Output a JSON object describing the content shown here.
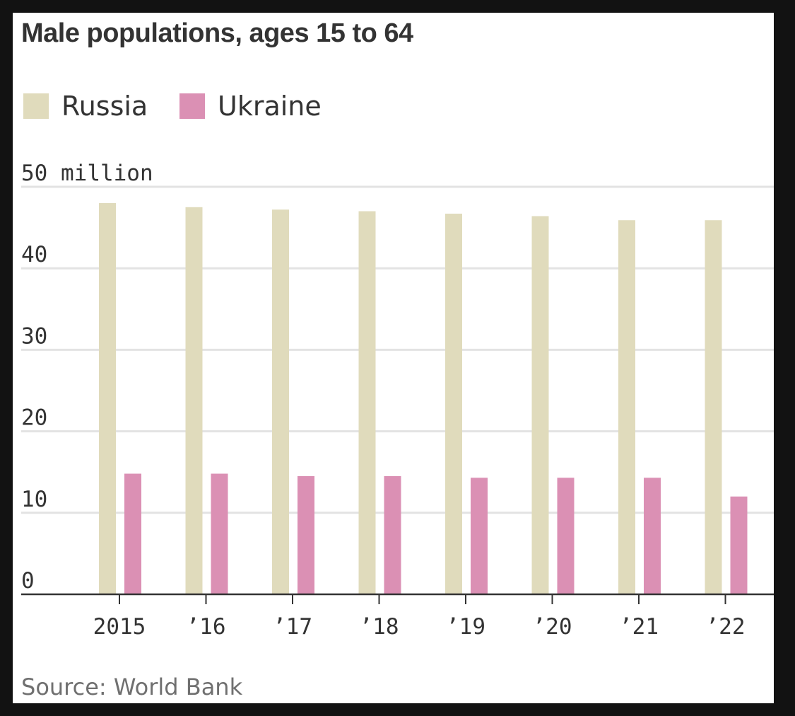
{
  "chart_data": {
    "type": "bar",
    "title": "Male populations, ages 15 to 64",
    "categories": [
      "2015",
      "’16",
      "’17",
      "’18",
      "’19",
      "’20",
      "’21",
      "’22"
    ],
    "series": [
      {
        "name": "Russia",
        "color": "#e0dbbc",
        "values": [
          48.0,
          47.5,
          47.2,
          47.0,
          46.7,
          46.4,
          45.9,
          45.9
        ]
      },
      {
        "name": "Ukraine",
        "color": "#db90b4",
        "values": [
          14.8,
          14.8,
          14.5,
          14.5,
          14.3,
          14.3,
          14.3,
          12.0
        ]
      }
    ],
    "yticks": [
      {
        "value": 0,
        "label": "0"
      },
      {
        "value": 10,
        "label": "10"
      },
      {
        "value": 20,
        "label": "20"
      },
      {
        "value": 30,
        "label": "30"
      },
      {
        "value": 40,
        "label": "40"
      },
      {
        "value": 50,
        "label": "50 million"
      }
    ],
    "ylim": [
      0,
      50
    ],
    "grid": true,
    "legend_position": "top-left",
    "source": "Source: World Bank"
  }
}
